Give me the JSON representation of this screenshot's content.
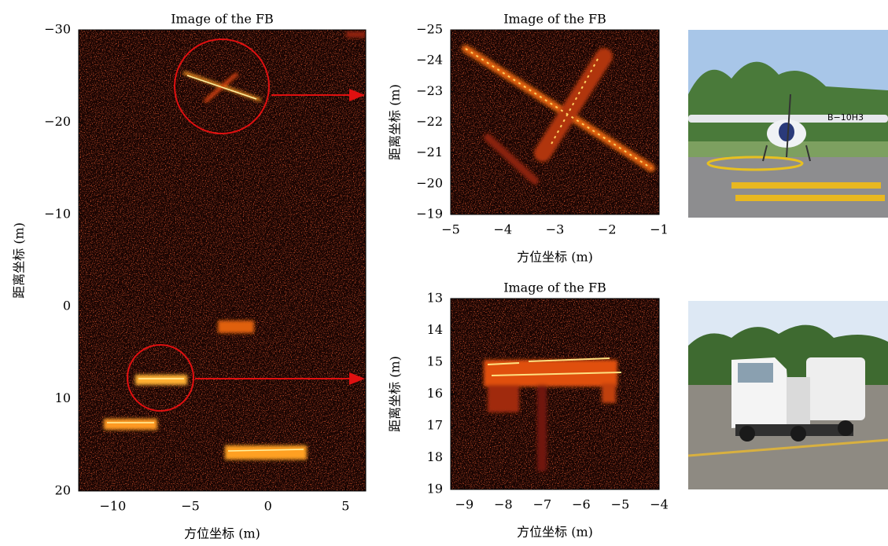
{
  "chart_data": [
    {
      "type": "image",
      "title": "Image of the FB",
      "x_label": "方位坐标 (m)",
      "y_label": "距离坐标 (m)",
      "xlim": [
        -12.2,
        6.3
      ],
      "ylim": [
        -30,
        20
      ],
      "y_inverted": true,
      "xticks": [
        {
          "value": -10,
          "label": "−10"
        },
        {
          "value": -5,
          "label": "−5"
        },
        0,
        5
      ],
      "yticks": [
        {
          "value": -30,
          "label": "−30"
        },
        {
          "value": -20,
          "label": "−20"
        },
        {
          "value": -10,
          "label": "−10"
        },
        0,
        10,
        20
      ]
    },
    {
      "type": "image",
      "title": "Image of the FB",
      "x_label": "方位坐标 (m)",
      "y_label": "距离坐标 (m)",
      "xlim": [
        -5,
        -1
      ],
      "ylim": [
        -25,
        -19
      ],
      "y_inverted": true,
      "xticks": [
        {
          "value": -5,
          "label": "−5"
        },
        {
          "value": -4,
          "label": "−4"
        },
        {
          "value": -3,
          "label": "−3"
        },
        {
          "value": -2,
          "label": "−2"
        },
        {
          "value": -1,
          "label": "−1"
        }
      ],
      "yticks": [
        {
          "value": -25,
          "label": "−25"
        },
        {
          "value": -24,
          "label": "−24"
        },
        {
          "value": -23,
          "label": "−23"
        },
        {
          "value": -22,
          "label": "−22"
        },
        {
          "value": -21,
          "label": "−21"
        },
        {
          "value": -20,
          "label": "−20"
        },
        {
          "value": -19,
          "label": "−19"
        }
      ]
    },
    {
      "type": "image",
      "title": "Image of the FB",
      "x_label": "方位坐标 (m)",
      "y_label": "距离坐标 (m)",
      "xlim": [
        -9.35,
        -4
      ],
      "ylim": [
        13,
        19
      ],
      "y_inverted": true,
      "xticks": [
        {
          "value": -9,
          "label": "−9"
        },
        {
          "value": -8,
          "label": "−8"
        },
        {
          "value": -7,
          "label": "−7"
        },
        {
          "value": -6,
          "label": "−6"
        },
        {
          "value": -5,
          "label": "−5"
        },
        {
          "value": -4,
          "label": "−4"
        }
      ],
      "yticks": [
        13,
        14,
        15,
        16,
        17,
        18,
        19
      ]
    }
  ]
}
